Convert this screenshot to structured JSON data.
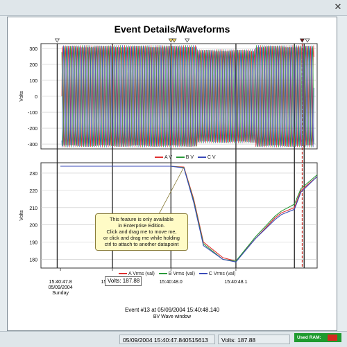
{
  "window": {
    "title": "Event Details/Waveforms",
    "close_icon": "x-icon"
  },
  "top_chart": {
    "ylabel": "Volts",
    "y_ticks": [
      "300",
      "200",
      "100",
      "0",
      "-100",
      "-200",
      "-300"
    ],
    "legend": [
      {
        "name": "A V",
        "color": "#e03030"
      },
      {
        "name": "B V",
        "color": "#2a9a3a"
      },
      {
        "name": "C V",
        "color": "#3a4ab8"
      }
    ]
  },
  "bottom_chart": {
    "ylabel": "Volts",
    "y_ticks": [
      "230",
      "220",
      "210",
      "200",
      "190",
      "180"
    ],
    "legend": [
      {
        "name": "A Vrms (val)",
        "color": "#e03030"
      },
      {
        "name": "B Vrms (val)",
        "color": "#2a9a3a"
      },
      {
        "name": "C Vrms (val)",
        "color": "#3a4ab8"
      }
    ]
  },
  "x_ticks": [
    "15:40:47.8",
    "15:40:47.9",
    "15:40:48.0",
    "15:40:48.1"
  ],
  "x_first_sub": [
    "05/09/2004",
    "Sunday"
  ],
  "tooltip": {
    "lines": [
      "This feature is only available",
      "in Enterprise Edition.",
      "Click and drag me to move me,",
      "or click and drag me while holding",
      "ctrl to attach to another datapoint"
    ]
  },
  "volts_readout": "Volts: 187.88",
  "footer": {
    "event": "Event #13 at 05/09/2004 15:40:48.140",
    "window": "BV Wave window"
  },
  "status": {
    "datetime": "05/09/2004 15:40:47.840515613",
    "volts": "Volts: 187.88",
    "ram_label": "Used RAM:"
  },
  "chart_data": [
    {
      "type": "line",
      "title": "Event Details/Waveforms",
      "ylabel": "Volts",
      "ylim": [
        -330,
        330
      ],
      "x": [
        "15:40:47.8",
        "15:40:47.9",
        "15:40:48.0",
        "15:40:48.1"
      ],
      "series": [
        {
          "name": "A V",
          "amplitude": 320
        },
        {
          "name": "B V",
          "amplitude": 320
        },
        {
          "name": "C V",
          "amplitude": 320
        }
      ]
    },
    {
      "type": "line",
      "ylabel": "Volts",
      "ylim": [
        175,
        235
      ],
      "x": [
        47.78,
        47.85,
        47.95,
        47.97,
        47.985,
        48.0,
        48.03,
        48.05,
        48.08,
        48.11,
        48.12,
        48.14,
        48.15,
        48.175
      ],
      "series": [
        {
          "name": "A Vrms (val)",
          "values": [
            234,
            234,
            234,
            233.5,
            215,
            190,
            181,
            179,
            192,
            204,
            207,
            210,
            220,
            228
          ]
        },
        {
          "name": "B Vrms (val)",
          "values": [
            234,
            234,
            234,
            233.2,
            214,
            189,
            180,
            179,
            193,
            205,
            208,
            212,
            221,
            229
          ]
        },
        {
          "name": "C Vrms (val)",
          "values": [
            234,
            234,
            234,
            233,
            213,
            188,
            180,
            178.5,
            192,
            203,
            206,
            209,
            219,
            228
          ]
        }
      ]
    }
  ]
}
